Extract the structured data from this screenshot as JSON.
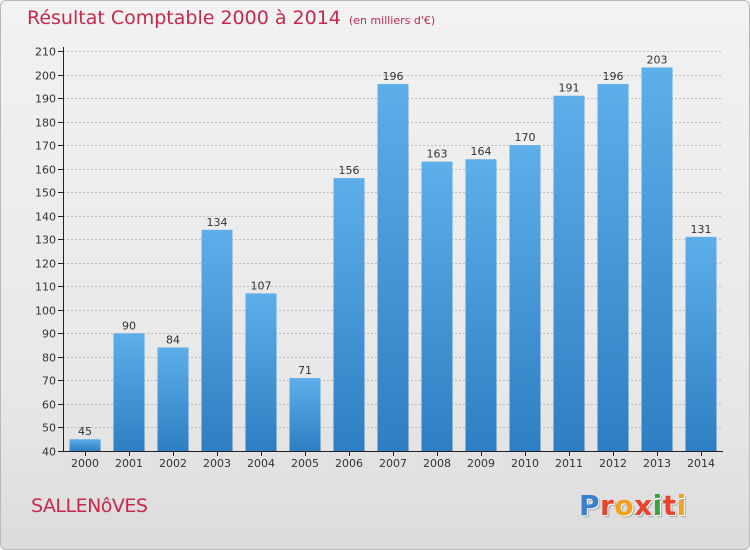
{
  "header": {
    "title": "Résultat Comptable 2000 à 2014",
    "subtitle": "(en milliers d'€)"
  },
  "footer": {
    "commune": "SALLENôVES",
    "logo_letters": [
      "P",
      "r",
      "o",
      "x",
      "i",
      "t",
      "i"
    ],
    "logo_colors": [
      "#3a7fd0",
      "#e8452c",
      "#f1a11b",
      "#e8452c",
      "#3aa33a",
      "#e8452c",
      "#f1a11b"
    ]
  },
  "colors": {
    "bar_top": "#5eaeea",
    "bar_bottom": "#2f7ec3",
    "axis": "#222222",
    "grid": "#bdbdbd",
    "title": "#c8284a"
  },
  "chart_data": {
    "type": "bar",
    "title": "Résultat Comptable 2000 à 2014",
    "subtitle": "(en milliers d'€)",
    "categories": [
      "2000",
      "2001",
      "2002",
      "2003",
      "2004",
      "2005",
      "2006",
      "2007",
      "2008",
      "2009",
      "2010",
      "2011",
      "2012",
      "2013",
      "2014"
    ],
    "values": [
      45,
      90,
      84,
      134,
      107,
      71,
      156,
      196,
      163,
      164,
      170,
      191,
      196,
      203,
      131
    ],
    "ylim": [
      40,
      210
    ],
    "yticks": [
      40,
      50,
      60,
      70,
      80,
      90,
      100,
      110,
      120,
      130,
      140,
      150,
      160,
      170,
      180,
      190,
      200,
      210
    ],
    "grid": true,
    "xlabel": "",
    "ylabel": ""
  }
}
